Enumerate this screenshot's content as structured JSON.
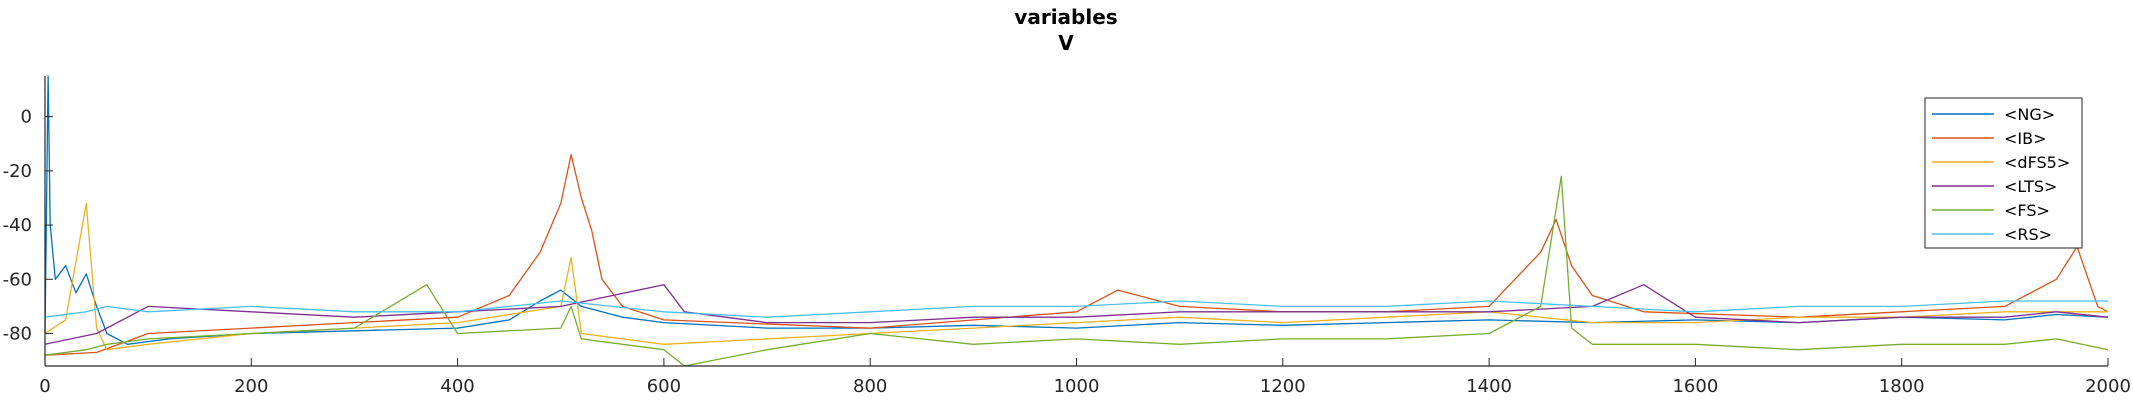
{
  "chart_data": {
    "type": "line",
    "title": "variables",
    "subtitle": "V",
    "xlabel": "",
    "ylabel": "",
    "xlim": [
      0,
      2000
    ],
    "ylim": [
      -92,
      15
    ],
    "x_ticks": [
      0,
      200,
      400,
      600,
      800,
      1000,
      1200,
      1400,
      1600,
      1800,
      2000
    ],
    "y_ticks": [
      0,
      -20,
      -40,
      -60,
      -80
    ],
    "grid": false,
    "legend_position": "top-right",
    "series": [
      {
        "name": "<NG>",
        "color": "#0072BD",
        "x": [
          0,
          3,
          5,
          10,
          20,
          30,
          40,
          50,
          60,
          80,
          120,
          200,
          300,
          400,
          450,
          480,
          500,
          520,
          540,
          560,
          600,
          700,
          800,
          900,
          1000,
          1100,
          1200,
          1300,
          1400,
          1500,
          1600,
          1700,
          1800,
          1900,
          1950,
          2000
        ],
        "y": [
          -80,
          15,
          -40,
          -60,
          -55,
          -65,
          -58,
          -70,
          -80,
          -84,
          -82,
          -80,
          -79,
          -78,
          -75,
          -68,
          -64,
          -70,
          -72,
          -74,
          -76,
          -78,
          -78,
          -77,
          -78,
          -76,
          -77,
          -76,
          -75,
          -76,
          -75,
          -76,
          -74,
          -75,
          -73,
          -74
        ]
      },
      {
        "name": "<IB>",
        "color": "#D95319",
        "x": [
          0,
          50,
          100,
          200,
          300,
          400,
          450,
          480,
          500,
          510,
          520,
          530,
          540,
          560,
          600,
          800,
          1000,
          1040,
          1060,
          1080,
          1100,
          1200,
          1300,
          1400,
          1430,
          1450,
          1465,
          1480,
          1500,
          1550,
          1700,
          1900,
          1950,
          1970,
          1990,
          2000
        ],
        "y": [
          -88,
          -87,
          -80,
          -78,
          -76,
          -74,
          -66,
          -50,
          -32,
          -14,
          -30,
          -42,
          -60,
          -70,
          -75,
          -78,
          -72,
          -64,
          -66,
          -68,
          -70,
          -72,
          -72,
          -70,
          -58,
          -50,
          -38,
          -55,
          -66,
          -72,
          -74,
          -70,
          -60,
          -48,
          -70,
          -72
        ]
      },
      {
        "name": "<dFS5>",
        "color": "#EDB120",
        "x": [
          0,
          20,
          40,
          50,
          60,
          100,
          150,
          200,
          300,
          400,
          500,
          510,
          520,
          600,
          700,
          800,
          900,
          1000,
          1100,
          1200,
          1300,
          1400,
          1500,
          1600,
          1700,
          1800,
          1900,
          2000
        ],
        "y": [
          -80,
          -75,
          -32,
          -78,
          -86,
          -84,
          -82,
          -80,
          -78,
          -76,
          -70,
          -52,
          -80,
          -84,
          -82,
          -80,
          -78,
          -76,
          -74,
          -76,
          -74,
          -72,
          -76,
          -76,
          -74,
          -74,
          -72,
          -72
        ]
      },
      {
        "name": "<LTS>",
        "color": "#7E2F8E",
        "x": [
          0,
          50,
          100,
          200,
          300,
          400,
          500,
          600,
          620,
          700,
          800,
          900,
          1000,
          1100,
          1200,
          1300,
          1400,
          1500,
          1550,
          1600,
          1700,
          1800,
          1900,
          1950,
          2000
        ],
        "y": [
          -84,
          -80,
          -70,
          -72,
          -74,
          -72,
          -70,
          -62,
          -72,
          -76,
          -76,
          -74,
          -74,
          -72,
          -72,
          -72,
          -72,
          -70,
          -62,
          -74,
          -76,
          -74,
          -74,
          -72,
          -74
        ]
      },
      {
        "name": "<FS>",
        "color": "#77AC30",
        "x": [
          0,
          40,
          60,
          100,
          200,
          300,
          370,
          400,
          500,
          510,
          520,
          600,
          620,
          700,
          800,
          900,
          1000,
          1100,
          1200,
          1300,
          1400,
          1450,
          1470,
          1480,
          1500,
          1600,
          1700,
          1800,
          1900,
          1950,
          2000
        ],
        "y": [
          -88,
          -86,
          -84,
          -82,
          -80,
          -78,
          -62,
          -80,
          -78,
          -70,
          -82,
          -86,
          -92,
          -86,
          -80,
          -84,
          -82,
          -84,
          -82,
          -82,
          -80,
          -70,
          -22,
          -78,
          -84,
          -84,
          -86,
          -84,
          -84,
          -82,
          -86
        ]
      },
      {
        "name": "<RS>",
        "color": "#4DBEEE",
        "x": [
          0,
          40,
          60,
          100,
          200,
          300,
          400,
          500,
          600,
          700,
          800,
          900,
          1000,
          1100,
          1200,
          1300,
          1400,
          1500,
          1600,
          1700,
          1800,
          1900,
          2000
        ],
        "y": [
          -74,
          -72,
          -70,
          -72,
          -70,
          -72,
          -72,
          -68,
          -72,
          -74,
          -72,
          -70,
          -70,
          -68,
          -70,
          -70,
          -68,
          -70,
          -72,
          -70,
          -70,
          -68,
          -68
        ]
      }
    ]
  }
}
